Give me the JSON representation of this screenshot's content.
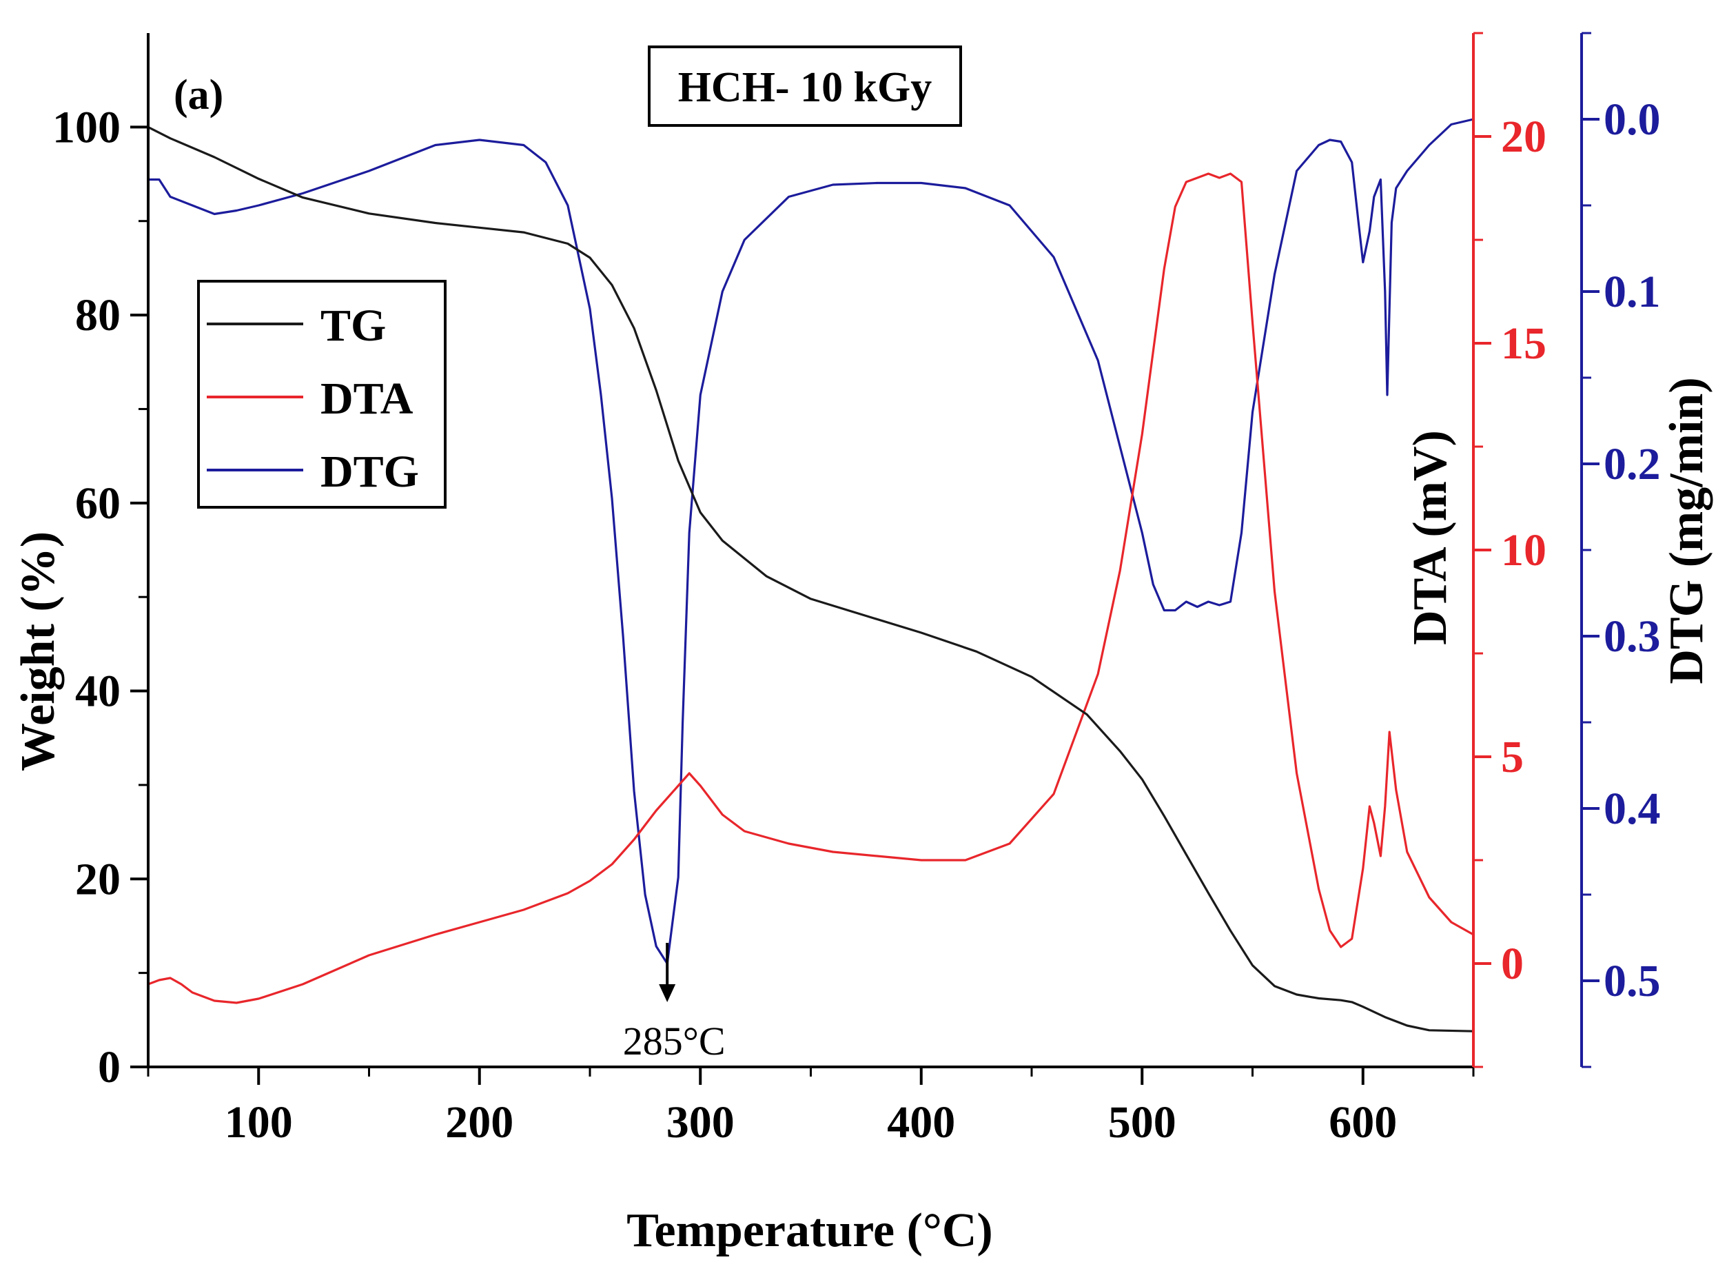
{
  "chart_data": {
    "type": "line",
    "panel_label": "(a)",
    "title": "HCH- 10 kGy",
    "xlabel": "Temperature (°C)",
    "xlim": [
      50,
      650
    ],
    "x_ticks": [
      100,
      200,
      300,
      400,
      500,
      600
    ],
    "axes": {
      "left": {
        "label": "Weight (%)",
        "lim": [
          0,
          110
        ],
        "ticks": [
          0,
          20,
          40,
          60,
          80,
          100
        ],
        "color": "#000000"
      },
      "right1": {
        "label": "DTA (mV)",
        "lim": [
          -2.5,
          22.5
        ],
        "ticks": [
          0,
          5,
          10,
          15,
          20
        ],
        "color": "#e8262b"
      },
      "right2": {
        "label": "DTG (mg/min)",
        "lim": [
          0.55,
          -0.05
        ],
        "ticks": [
          "0.0",
          "0.1",
          "0.2",
          "0.3",
          "0.4",
          "0.5"
        ],
        "tick_values": [
          0.0,
          0.1,
          0.2,
          0.3,
          0.4,
          0.5
        ],
        "color": "#1c1c9c"
      }
    },
    "legend": {
      "position": "upper-left",
      "entries": [
        "TG",
        "DTA",
        "DTG"
      ]
    },
    "annotation": {
      "text": "285°C",
      "x": 285,
      "axis": "right2",
      "y": 0.49
    },
    "series": [
      {
        "name": "TG",
        "axis": "left",
        "color": "#1a1a1a",
        "x": [
          50,
          60,
          80,
          100,
          120,
          150,
          180,
          200,
          220,
          240,
          250,
          260,
          270,
          280,
          290,
          300,
          310,
          330,
          350,
          375,
          400,
          425,
          450,
          475,
          490,
          500,
          510,
          520,
          530,
          540,
          550,
          560,
          570,
          580,
          590,
          595,
          600,
          610,
          620,
          630,
          650
        ],
        "y": [
          100,
          98.8,
          96.8,
          94.5,
          92.5,
          90.8,
          89.8,
          89.3,
          88.8,
          87.6,
          86.1,
          83.2,
          78.6,
          72.0,
          64.5,
          59.0,
          56.0,
          52.2,
          49.8,
          48.0,
          46.2,
          44.2,
          41.5,
          37.5,
          33.6,
          30.6,
          26.7,
          22.6,
          18.5,
          14.5,
          10.8,
          8.6,
          7.7,
          7.3,
          7.1,
          6.9,
          6.4,
          5.3,
          4.4,
          3.9,
          3.8
        ]
      },
      {
        "name": "DTA",
        "axis": "right1",
        "color": "#e8262b",
        "x": [
          50,
          55,
          60,
          65,
          70,
          80,
          90,
          100,
          120,
          150,
          180,
          200,
          220,
          240,
          250,
          260,
          270,
          280,
          290,
          295,
          300,
          310,
          320,
          340,
          360,
          380,
          400,
          420,
          440,
          460,
          480,
          490,
          500,
          505,
          510,
          515,
          520,
          525,
          530,
          535,
          540,
          545,
          550,
          560,
          570,
          580,
          585,
          590,
          595,
          600,
          603,
          605,
          608,
          610,
          612,
          615,
          620,
          630,
          640,
          650
        ],
        "y": [
          -0.5,
          -0.4,
          -0.35,
          -0.5,
          -0.7,
          -0.9,
          -0.95,
          -0.85,
          -0.5,
          0.2,
          0.7,
          1.0,
          1.3,
          1.7,
          2.0,
          2.4,
          3.0,
          3.7,
          4.3,
          4.6,
          4.3,
          3.6,
          3.2,
          2.9,
          2.7,
          2.6,
          2.5,
          2.5,
          2.9,
          4.1,
          7.0,
          9.5,
          12.8,
          14.8,
          16.8,
          18.3,
          18.9,
          19.0,
          19.1,
          19.0,
          19.1,
          18.9,
          15.5,
          9.0,
          4.6,
          1.8,
          0.8,
          0.4,
          0.6,
          2.3,
          3.8,
          3.4,
          2.6,
          3.8,
          5.6,
          4.2,
          2.7,
          1.6,
          1.0,
          0.7
        ]
      },
      {
        "name": "DTG",
        "axis": "right2",
        "color": "#1c1c9c",
        "x": [
          50,
          55,
          60,
          70,
          80,
          90,
          100,
          120,
          150,
          180,
          200,
          220,
          230,
          240,
          250,
          255,
          260,
          265,
          270,
          275,
          280,
          285,
          290,
          292,
          295,
          300,
          310,
          320,
          340,
          360,
          380,
          400,
          420,
          440,
          460,
          480,
          490,
          500,
          505,
          510,
          515,
          520,
          525,
          530,
          535,
          540,
          545,
          550,
          560,
          570,
          580,
          585,
          590,
          595,
          598,
          600,
          603,
          605,
          608,
          610,
          611,
          613,
          615,
          620,
          630,
          640,
          650
        ],
        "y": [
          0.035,
          0.035,
          0.045,
          0.05,
          0.055,
          0.053,
          0.05,
          0.043,
          0.03,
          0.015,
          0.012,
          0.015,
          0.025,
          0.05,
          0.11,
          0.16,
          0.22,
          0.3,
          0.39,
          0.45,
          0.48,
          0.49,
          0.44,
          0.35,
          0.24,
          0.16,
          0.1,
          0.07,
          0.045,
          0.038,
          0.037,
          0.037,
          0.04,
          0.05,
          0.08,
          0.14,
          0.19,
          0.24,
          0.27,
          0.285,
          0.285,
          0.28,
          0.283,
          0.28,
          0.282,
          0.28,
          0.24,
          0.17,
          0.09,
          0.03,
          0.015,
          0.012,
          0.013,
          0.025,
          0.06,
          0.083,
          0.065,
          0.045,
          0.035,
          0.1,
          0.16,
          0.06,
          0.04,
          0.03,
          0.015,
          0.003,
          0.0
        ]
      }
    ]
  }
}
